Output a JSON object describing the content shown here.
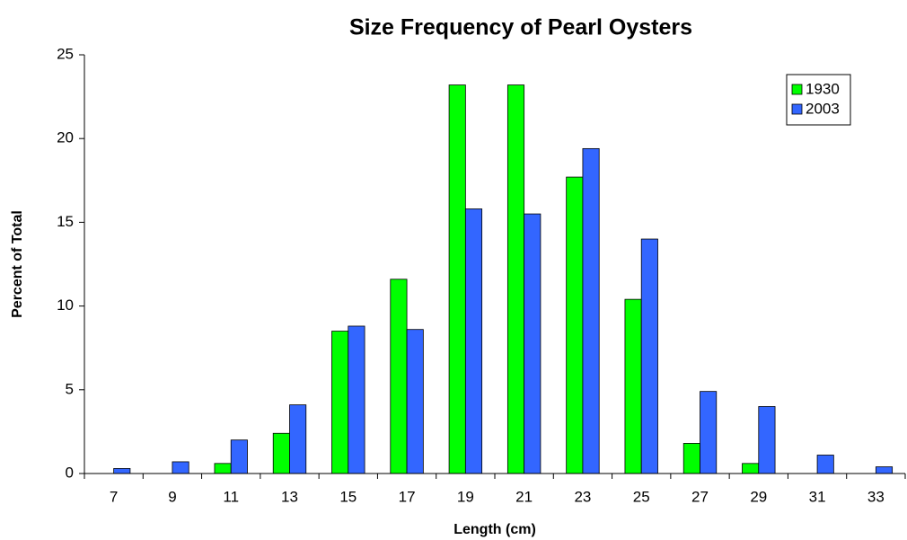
{
  "chart_data": {
    "type": "bar",
    "title": "Size Frequency of Pearl Oysters",
    "xlabel": "Length (cm)",
    "ylabel": "Percent of Total",
    "categories": [
      "7",
      "9",
      "11",
      "13",
      "15",
      "17",
      "19",
      "21",
      "23",
      "25",
      "27",
      "29",
      "31",
      "33"
    ],
    "series": [
      {
        "name": "1930",
        "color": "#00ff00",
        "values": [
          0,
          0,
          0.6,
          2.4,
          8.5,
          11.6,
          23.2,
          23.2,
          17.7,
          10.4,
          1.8,
          0.6,
          0,
          0
        ]
      },
      {
        "name": "2003",
        "color": "#3366ff",
        "values": [
          0.3,
          0.7,
          2.0,
          4.1,
          8.8,
          8.6,
          15.8,
          15.5,
          19.4,
          14.0,
          4.9,
          4.0,
          1.1,
          0.4
        ]
      }
    ],
    "ylim": [
      0,
      25
    ],
    "yticks": [
      0,
      5,
      10,
      15,
      20,
      25
    ],
    "grid": false,
    "legend": "upper right"
  }
}
